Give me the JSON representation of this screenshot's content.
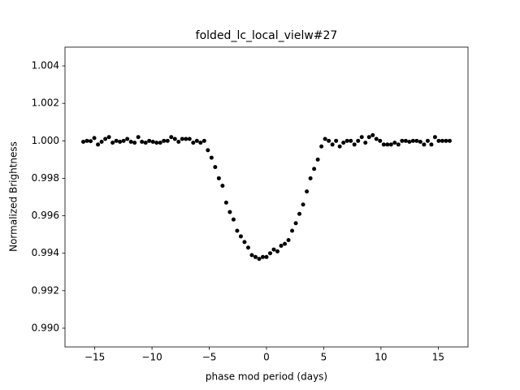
{
  "chart_data": {
    "type": "scatter",
    "title": "folded_lc_local_vielw#27",
    "xlabel": "phase mod period (days)",
    "ylabel": "Normalized Brightness",
    "color": "#000000",
    "x": [
      -16,
      -15.68,
      -15.36,
      -15.04,
      -14.72,
      -14.4,
      -14.08,
      -13.76,
      -13.44,
      -13.12,
      -12.8,
      -12.48,
      -12.16,
      -11.84,
      -11.52,
      -11.2,
      -10.88,
      -10.56,
      -10.24,
      -9.92,
      -9.6,
      -9.28,
      -8.96,
      -8.64,
      -8.32,
      -8,
      -7.68,
      -7.36,
      -7.04,
      -6.72,
      -6.4,
      -6.08,
      -5.76,
      -5.44,
      -5.12,
      -4.8,
      -4.48,
      -4.16,
      -3.84,
      -3.52,
      -3.2,
      -2.88,
      -2.56,
      -2.24,
      -1.92,
      -1.6,
      -1.28,
      -0.96,
      -0.64,
      -0.32,
      0,
      0.32,
      0.64,
      0.96,
      1.28,
      1.6,
      1.92,
      2.24,
      2.56,
      2.88,
      3.2,
      3.52,
      3.84,
      4.16,
      4.48,
      4.8,
      5.12,
      5.44,
      5.76,
      6.08,
      6.4,
      6.72,
      7.04,
      7.36,
      7.68,
      8,
      8.32,
      8.64,
      8.96,
      9.28,
      9.6,
      9.92,
      10.24,
      10.56,
      10.88,
      11.2,
      11.52,
      11.84,
      12.16,
      12.48,
      12.8,
      13.12,
      13.44,
      13.76,
      14.08,
      14.4,
      14.72,
      15.04,
      15.36,
      15.68,
      16
    ],
    "values": [
      0.99995,
      1,
      0.99998,
      1.00015,
      0.9998,
      0.99995,
      1.0001,
      1.0002,
      0.9999,
      1,
      0.99995,
      1,
      1.0001,
      0.99995,
      0.9999,
      1.0002,
      0.99995,
      0.9999,
      1,
      0.99995,
      0.9999,
      0.9999,
      1,
      1,
      1.0002,
      1.0001,
      0.99995,
      1.0001,
      1.0001,
      1.0001,
      0.9999,
      1,
      0.9999,
      1,
      0.9995,
      0.9991,
      0.9986,
      0.998,
      0.9976,
      0.9967,
      0.9962,
      0.9958,
      0.9952,
      0.9949,
      0.9946,
      0.9943,
      0.9939,
      0.9938,
      0.9937,
      0.9938,
      0.9938,
      0.994,
      0.9942,
      0.9941,
      0.9944,
      0.9945,
      0.9947,
      0.9952,
      0.9956,
      0.9961,
      0.9966,
      0.9973,
      0.998,
      0.9985,
      0.999,
      0.9997,
      1.0001,
      1,
      0.9998,
      1,
      0.9997,
      0.9999,
      1,
      1,
      0.9998,
      1,
      1.0002,
      0.9999,
      1.0002,
      1.0003,
      1.0001,
      1,
      0.9998,
      0.9998,
      0.9998,
      0.9999,
      0.9998,
      1,
      1,
      0.99995,
      1,
      1,
      0.99995,
      0.9998,
      1,
      0.9998,
      1.0002,
      1,
      1,
      1,
      1
    ],
    "xlim": [
      -17.6,
      17.6
    ],
    "ylim": [
      0.989,
      1.005
    ],
    "xticks": [
      {
        "value": -15,
        "label": "−15"
      },
      {
        "value": -10,
        "label": "−10"
      },
      {
        "value": -5,
        "label": "−5"
      },
      0,
      5,
      10,
      15
    ],
    "yticks": [
      {
        "value": 0.99,
        "label": "0.990"
      },
      0.992,
      0.994,
      0.996,
      0.998,
      {
        "value": 1,
        "label": "1.000"
      },
      1.002,
      1.004
    ]
  }
}
